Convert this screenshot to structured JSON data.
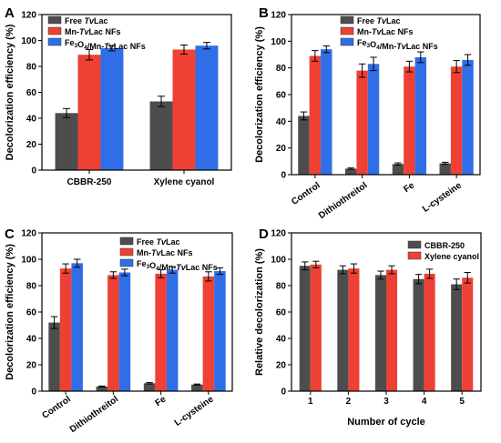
{
  "chart_data": [
    {
      "panel": "A",
      "type": "bar",
      "categories": [
        "CBBR-250",
        "Xylene cyanol"
      ],
      "series": [
        {
          "name": "Free TvLac",
          "name_parts": [
            [
              "Free ",
              "n"
            ],
            [
              "Tv",
              "i"
            ],
            [
              "Lac",
              "n"
            ]
          ],
          "color": "#4d4d4d",
          "values": [
            44,
            53
          ],
          "errors": [
            3.5,
            4
          ]
        },
        {
          "name": "Mn-TvLac NFs",
          "name_parts": [
            [
              "Mn-",
              "n"
            ],
            [
              "Tv",
              "i"
            ],
            [
              "Lac NFs",
              "n"
            ]
          ],
          "color": "#ee4035",
          "values": [
            89,
            93
          ],
          "errors": [
            4,
            3.5
          ]
        },
        {
          "name": "Fe3O4/Mn-TvLac NFs",
          "name_parts": [
            [
              "Fe",
              "n"
            ],
            [
              "3",
              "sub"
            ],
            [
              "O",
              "n"
            ],
            [
              "4",
              "sub"
            ],
            [
              "/Mn-",
              "n"
            ],
            [
              "Tv",
              "i"
            ],
            [
              "Lac NFs",
              "n"
            ]
          ],
          "color": "#2f6ee6",
          "values": [
            94,
            96
          ],
          "errors": [
            2,
            2.5
          ]
        }
      ],
      "ylabel": "Decolorization efficiency (%)",
      "xlabel": "",
      "ylim": [
        0,
        120
      ],
      "yticks": [
        0,
        20,
        40,
        60,
        80,
        100,
        120
      ],
      "legend": "top-left",
      "rotate_x_labels": false
    },
    {
      "panel": "B",
      "type": "bar",
      "categories": [
        "Control",
        "Dithiothreitol",
        "Fe",
        "L-cysteine"
      ],
      "series": [
        {
          "name": "Free TvLac",
          "name_parts": [
            [
              "Free ",
              "n"
            ],
            [
              "Tv",
              "i"
            ],
            [
              "Lac",
              "n"
            ]
          ],
          "color": "#4d4d4d",
          "values": [
            44,
            4.5,
            8,
            8.5
          ],
          "errors": [
            3,
            0.5,
            0.8,
            0.8
          ]
        },
        {
          "name": "Mn-TvLac NFs",
          "name_parts": [
            [
              "Mn-",
              "n"
            ],
            [
              "Tv",
              "i"
            ],
            [
              "Lac NFs",
              "n"
            ]
          ],
          "color": "#ee4035",
          "values": [
            89,
            78,
            81,
            81
          ],
          "errors": [
            4,
            5,
            4,
            4.5
          ]
        },
        {
          "name": "Fe3O4/Mn-TvLac NFs",
          "name_parts": [
            [
              "Fe",
              "n"
            ],
            [
              "3",
              "sub"
            ],
            [
              "O",
              "n"
            ],
            [
              "4",
              "sub"
            ],
            [
              "/Mn-",
              "n"
            ],
            [
              "Tv",
              "i"
            ],
            [
              "Lac NFs",
              "n"
            ]
          ],
          "color": "#2f6ee6",
          "values": [
            94,
            83,
            88,
            86
          ],
          "errors": [
            2.5,
            5,
            4,
            4
          ]
        }
      ],
      "ylabel": "Decolorization efficiency (%)",
      "xlabel": "",
      "ylim": [
        0,
        120
      ],
      "yticks": [
        0,
        20,
        40,
        60,
        80,
        100,
        120
      ],
      "legend": "top-left",
      "rotate_x_labels": true
    },
    {
      "panel": "C",
      "type": "bar",
      "categories": [
        "Control",
        "Dithiothreitol",
        "Fe",
        "L-cysteine"
      ],
      "series": [
        {
          "name": "Free TvLac",
          "name_parts": [
            [
              "Free ",
              "n"
            ],
            [
              "Tv",
              "i"
            ],
            [
              "Lac",
              "n"
            ]
          ],
          "color": "#4d4d4d",
          "values": [
            52,
            3.5,
            6,
            5
          ],
          "errors": [
            4.5,
            0.4,
            0.5,
            0.4
          ]
        },
        {
          "name": "Mn-TvLac NFs",
          "name_parts": [
            [
              "Mn-",
              "n"
            ],
            [
              "Tv",
              "i"
            ],
            [
              "Lac NFs",
              "n"
            ]
          ],
          "color": "#ee4035",
          "values": [
            93,
            88,
            89,
            87
          ],
          "errors": [
            3.5,
            2.5,
            3,
            3.5
          ]
        },
        {
          "name": "Fe3O4/Mn-TvLac NFs",
          "name_parts": [
            [
              "Fe",
              "n"
            ],
            [
              "3",
              "sub"
            ],
            [
              "O",
              "n"
            ],
            [
              "4",
              "sub"
            ],
            [
              "/Mn-",
              "n"
            ],
            [
              "Tv",
              "i"
            ],
            [
              "Lac NFs",
              "n"
            ]
          ],
          "color": "#2f6ee6",
          "values": [
            97,
            90,
            92,
            91
          ],
          "errors": [
            3,
            2.5,
            2.5,
            2.5
          ]
        }
      ],
      "ylabel": "Decolorization efficiency (%)",
      "xlabel": "",
      "ylim": [
        0,
        120
      ],
      "yticks": [
        0,
        20,
        40,
        60,
        80,
        100,
        120
      ],
      "legend": "top-right",
      "rotate_x_labels": true
    },
    {
      "panel": "D",
      "type": "bar",
      "categories": [
        "1",
        "2",
        "3",
        "4",
        "5"
      ],
      "series": [
        {
          "name": "CBBR-250",
          "name_parts": [
            [
              "CBBR-250",
              "n"
            ]
          ],
          "color": "#4d4d4d",
          "values": [
            95,
            92,
            88,
            85,
            81
          ],
          "errors": [
            3,
            3,
            3,
            3.5,
            4
          ]
        },
        {
          "name": "Xylene cyanol",
          "name_parts": [
            [
              "Xylene cyanol",
              "n"
            ]
          ],
          "color": "#ee4035",
          "values": [
            96,
            93,
            92,
            89,
            86
          ],
          "errors": [
            2.5,
            3.5,
            3,
            3.5,
            4
          ]
        }
      ],
      "ylabel": "Relative decolorization (%)",
      "xlabel": "Number of cycle",
      "ylim": [
        0,
        120
      ],
      "yticks": [
        0,
        20,
        40,
        60,
        80,
        100,
        120
      ],
      "legend": "top-right",
      "rotate_x_labels": false
    }
  ]
}
